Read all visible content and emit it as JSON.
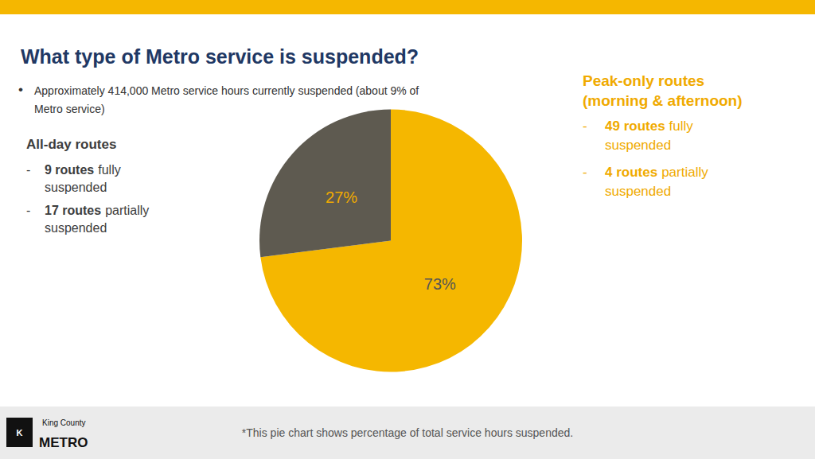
{
  "chart_data": {
    "type": "pie",
    "title": "What type of Metro service is suspended?",
    "values": [
      73,
      27
    ],
    "colors": [
      "#f5b700",
      "#5e5a50"
    ],
    "data_labels": true,
    "value_labels": [
      "73%",
      "27%"
    ],
    "annotations": [
      "•",
      "Approximately 414,000 Metro service hours currently suspended (about 9% of",
      "Metro service)",
      "All-day routes",
      "-",
      "9 routes",
      "fully",
      "suspended",
      "-",
      "17 routes",
      "partially",
      "suspended",
      "Peak-only routes",
      "(morning & afternoon)",
      "-",
      "49 routes",
      "fully",
      "suspended",
      "-",
      "4 routes",
      "partially",
      "suspended",
      "*This pie chart shows percentage of total service hours suspended.",
      "King County",
      "METRO",
      "K"
    ]
  }
}
